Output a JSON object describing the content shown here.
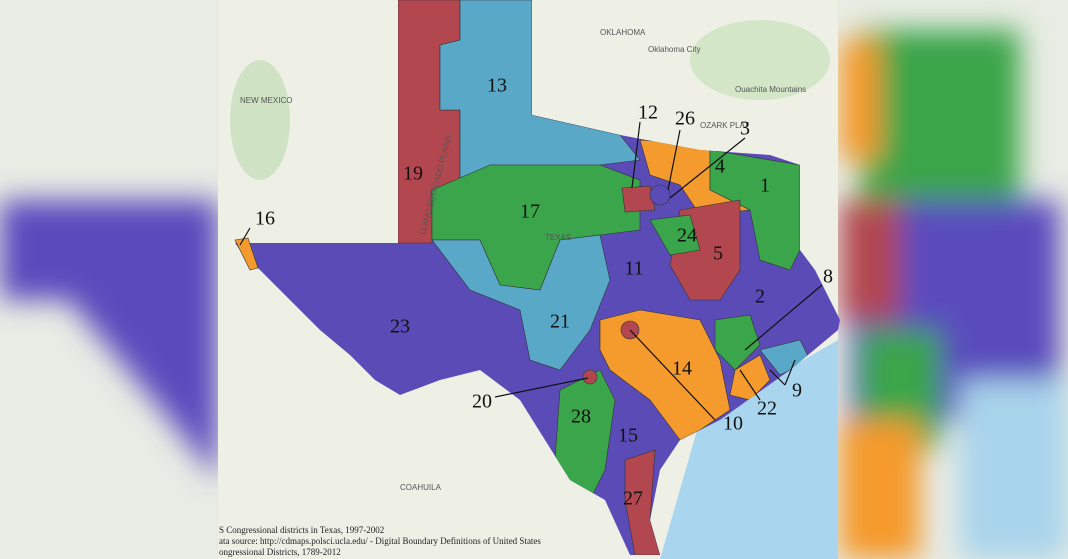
{
  "map_labels": {
    "oklahoma": "OKLAHOMA",
    "oklahoma_city": "Oklahoma City",
    "new_mexico": "NEW MEXICO",
    "texas": "TEXAS",
    "coahuila": "COAHUILA",
    "ozark": "OZARK PLAT",
    "llano": "LLANO ESTACADO PLAINS",
    "ouachita": "Ouachita Mountains"
  },
  "districts": [
    {
      "label": "13"
    },
    {
      "label": "19"
    },
    {
      "label": "12"
    },
    {
      "label": "26"
    },
    {
      "label": "3"
    },
    {
      "label": "4"
    },
    {
      "label": "1"
    },
    {
      "label": "17"
    },
    {
      "label": "24"
    },
    {
      "label": "5"
    },
    {
      "label": "11"
    },
    {
      "label": "16"
    },
    {
      "label": "2"
    },
    {
      "label": "8"
    },
    {
      "label": "23"
    },
    {
      "label": "21"
    },
    {
      "label": "14"
    },
    {
      "label": "20"
    },
    {
      "label": "22"
    },
    {
      "label": "9"
    },
    {
      "label": "10"
    },
    {
      "label": "28"
    },
    {
      "label": "15"
    },
    {
      "label": "27"
    }
  ],
  "source": {
    "lines": [
      "S Congressional districts in Texas, 1997-2002",
      "ata source: http://cdmaps.polsci.ucla.edu/ - Digital Boundary Definitions of United States",
      "ongressional Districts, 1789-2012"
    ]
  }
}
